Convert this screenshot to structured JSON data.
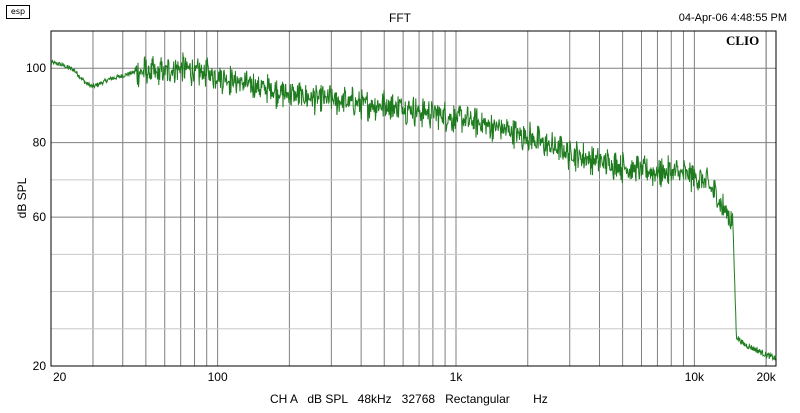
{
  "header": {
    "logo_text": "esp",
    "title": "FFT",
    "timestamp": "04-Apr-06 4:48:55 PM"
  },
  "footer": {
    "channel": "CH A",
    "unit": "dB SPL",
    "sample_rate": "48kHz",
    "fft_size": "32768",
    "window": "Rectangular",
    "x_unit": "Hz"
  },
  "brand": "CLIO",
  "colors": {
    "trace": "#1e7b1e",
    "grid": "#808080",
    "grid_minor": "#c8c8c8"
  },
  "chart_data": {
    "type": "line",
    "title": "FFT",
    "xlabel": "Hz",
    "ylabel": "dB SPL",
    "x_scale": "log",
    "xlim": [
      20,
      22000
    ],
    "ylim": [
      20,
      110
    ],
    "x_ticks": [
      {
        "value": 20,
        "label": "20"
      },
      {
        "value": 100,
        "label": "100"
      },
      {
        "value": 1000,
        "label": "1k"
      },
      {
        "value": 10000,
        "label": "10k"
      },
      {
        "value": 20000,
        "label": "20k"
      }
    ],
    "y_ticks": [
      {
        "value": 20,
        "label": "20"
      },
      {
        "value": 60,
        "label": "60"
      },
      {
        "value": 80,
        "label": "80"
      },
      {
        "value": 100,
        "label": "100"
      }
    ],
    "y_minor_grid": [
      30,
      40,
      50,
      70,
      90
    ],
    "grid": true,
    "series": [
      {
        "x": [
          20,
          22,
          25,
          28,
          30,
          35,
          40,
          45,
          50,
          55,
          60,
          65,
          70,
          75,
          80,
          90,
          100,
          120,
          150,
          180,
          200,
          250,
          300,
          350,
          400,
          500,
          600,
          700,
          800,
          1000,
          1200,
          1500,
          2000,
          2500,
          3000,
          3500,
          4000,
          5000,
          6000,
          7000,
          8000,
          9000,
          10000,
          11000,
          12000,
          13000,
          14000,
          14500,
          15000,
          16000,
          18000,
          20000,
          22000
        ],
        "y": [
          101.5,
          101,
          99.5,
          96,
          95,
          97,
          98,
          99,
          99,
          98.5,
          99,
          99.5,
          100,
          100,
          99,
          98.5,
          98,
          96.5,
          95,
          93.5,
          93,
          92,
          91.5,
          91,
          90.5,
          90,
          89.5,
          88.5,
          88,
          86.5,
          85.5,
          84,
          81.5,
          79,
          77,
          76,
          75,
          73.5,
          72.5,
          72,
          72,
          71.5,
          71,
          69.5,
          67,
          63,
          60.5,
          58.5,
          28,
          26,
          24.5,
          23,
          22
        ]
      }
    ]
  }
}
